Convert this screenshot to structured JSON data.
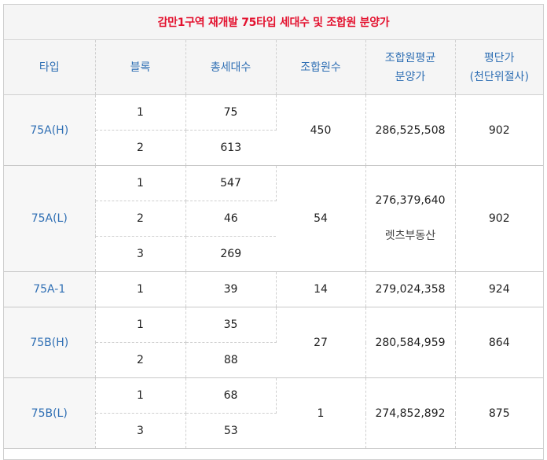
{
  "title": "감만1구역 재개발 75타입 세대수 및 조합원 분양가",
  "headers": {
    "type": "타입",
    "block": "블록",
    "total_households": "총세대수",
    "members": "조합원수",
    "avg_price_line1": "조합원평균",
    "avg_price_line2": "분양가",
    "per_pyeong_line1": "평단가",
    "per_pyeong_line2": "(천단위절사)"
  },
  "groups": [
    {
      "type": "75A(H)",
      "members": "450",
      "avg_price": "286,525,508",
      "per_pyeong": "902",
      "rows": [
        {
          "block": "1",
          "total": "75"
        },
        {
          "block": "2",
          "total": "613"
        }
      ]
    },
    {
      "type": "75A(L)",
      "members": "54",
      "avg_price": "276,379,640",
      "note": "렛츠부동산",
      "per_pyeong": "902",
      "rows": [
        {
          "block": "1",
          "total": "547"
        },
        {
          "block": "2",
          "total": "46"
        },
        {
          "block": "3",
          "total": "269"
        }
      ]
    },
    {
      "type": "75A-1",
      "members": "14",
      "avg_price": "279,024,358",
      "per_pyeong": "924",
      "rows": [
        {
          "block": "1",
          "total": "39"
        }
      ]
    },
    {
      "type": "75B(H)",
      "members": "27",
      "avg_price": "280,584,959",
      "per_pyeong": "864",
      "rows": [
        {
          "block": "1",
          "total": "35"
        },
        {
          "block": "2",
          "total": "88"
        }
      ]
    },
    {
      "type": "75B(L)",
      "members": "1",
      "avg_price": "274,852,892",
      "per_pyeong": "875",
      "rows": [
        {
          "block": "1",
          "total": "68"
        },
        {
          "block": "3",
          "total": "53"
        }
      ]
    }
  ]
}
